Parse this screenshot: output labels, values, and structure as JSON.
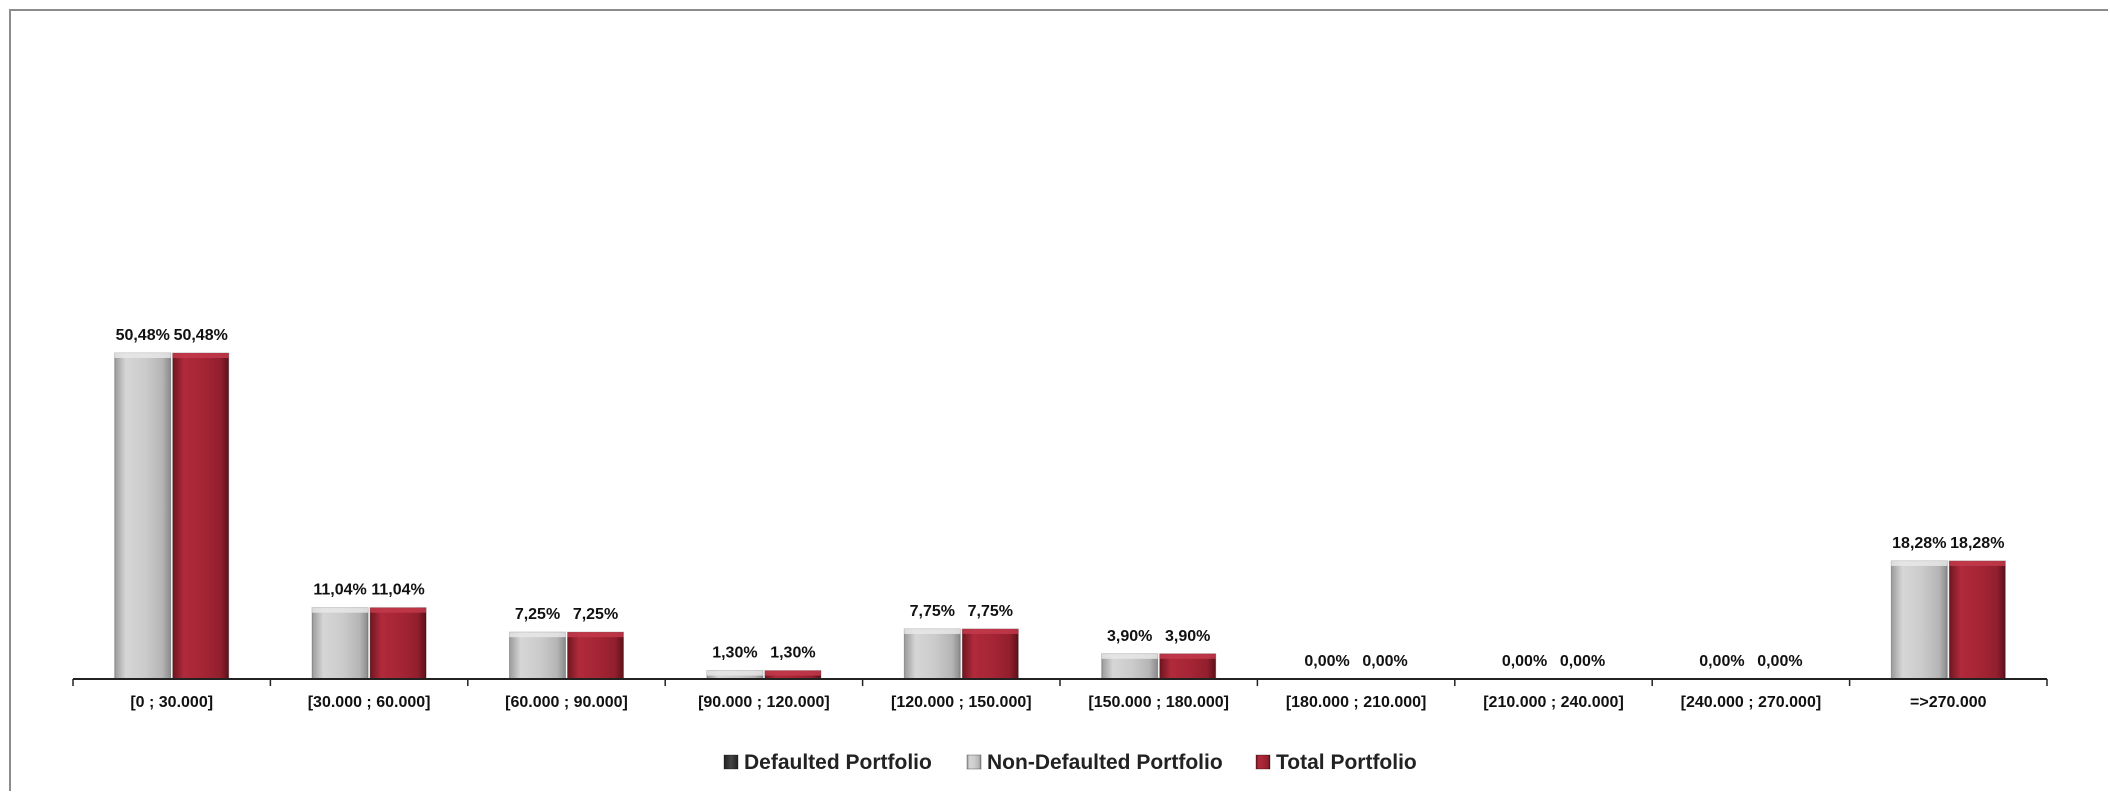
{
  "chart_data": {
    "type": "bar",
    "title": "",
    "xlabel": "",
    "ylabel": "",
    "ylim": [
      0,
      100
    ],
    "grid": false,
    "legend_position": "bottom",
    "categories": [
      "[0 ; 30.000]",
      "[30.000 ; 60.000]",
      "[60.000 ; 90.000]",
      "[90.000 ; 120.000]",
      "[120.000 ; 150.000]",
      "[150.000 ; 180.000]",
      "[180.000 ; 210.000]",
      "[210.000 ; 240.000]",
      "[240.000 ; 270.000]",
      "=>270.000"
    ],
    "series": [
      {
        "name": "Defaulted Portfolio",
        "color": "#3a3a3a",
        "values": [
          null,
          null,
          null,
          null,
          null,
          null,
          null,
          null,
          null,
          null
        ],
        "labels": [
          "",
          "",
          "",
          "",
          "",
          "",
          "",
          "",
          "",
          ""
        ]
      },
      {
        "name": "Non-Defaulted Portfolio",
        "color": "#c8c8c8",
        "values": [
          50.48,
          11.04,
          7.25,
          1.3,
          7.75,
          3.9,
          0.0,
          0.0,
          0.0,
          18.28
        ],
        "labels": [
          "50,48%",
          "11,04%",
          "7,25%",
          "1,30%",
          "7,75%",
          "3,90%",
          "0,00%",
          "0,00%",
          "0,00%",
          "18,28%"
        ]
      },
      {
        "name": "Total Portfolio",
        "color": "#a52535",
        "values": [
          50.48,
          11.04,
          7.25,
          1.3,
          7.75,
          3.9,
          0.0,
          0.0,
          0.0,
          18.28
        ],
        "labels": [
          "50,48%",
          "11,04%",
          "7,25%",
          "1,30%",
          "7,75%",
          "3,90%",
          "0,00%",
          "0,00%",
          "0,00%",
          "18,28%"
        ]
      }
    ]
  }
}
